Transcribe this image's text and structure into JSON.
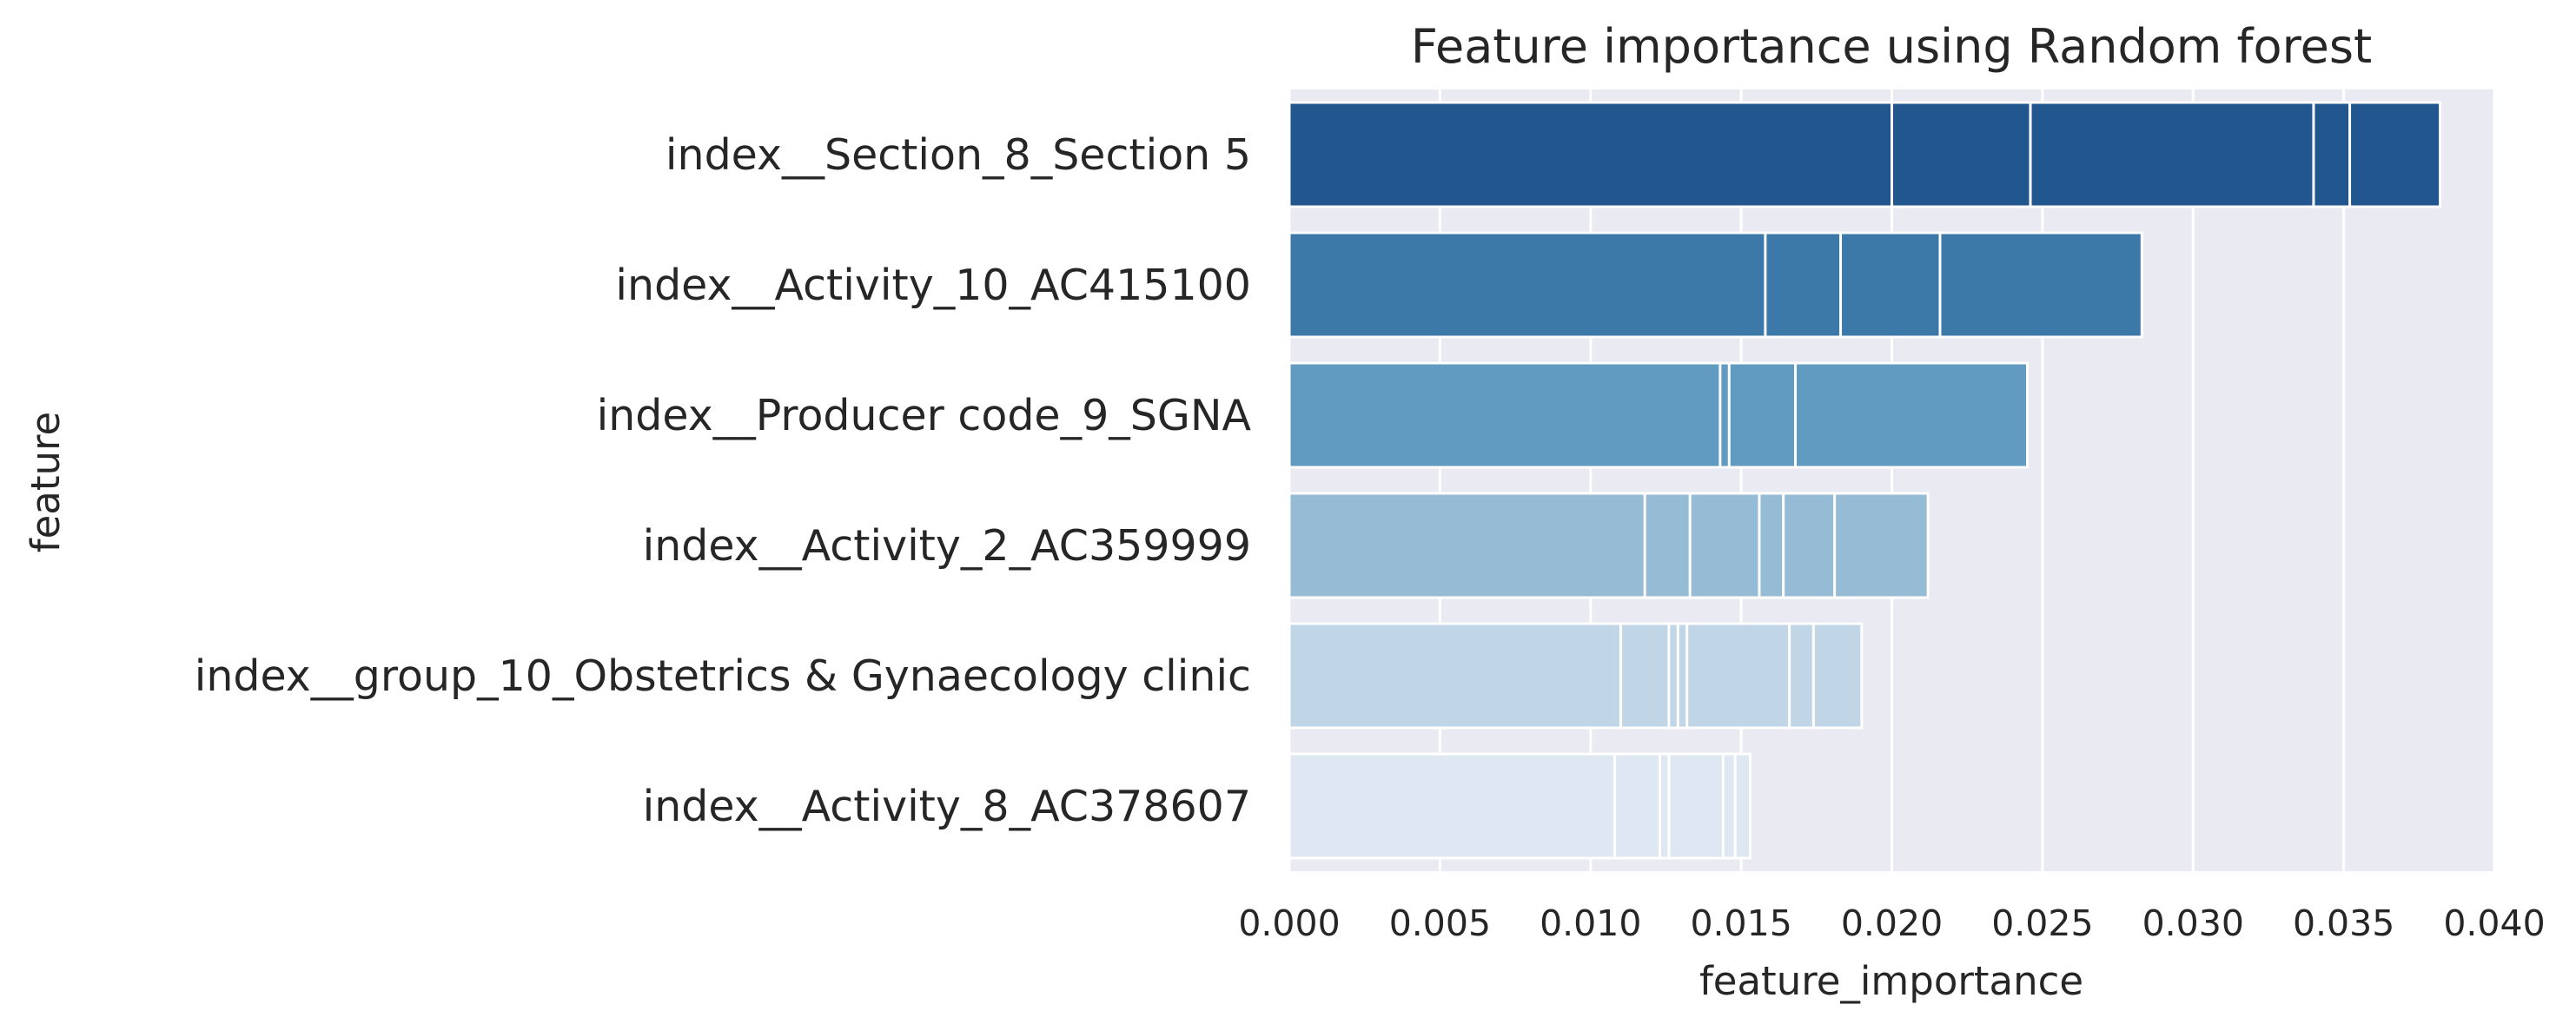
{
  "chart_data": {
    "type": "bar",
    "orientation": "horizontal",
    "title": "Feature importance using Random forest",
    "xlabel": "feature_importance",
    "ylabel": "feature",
    "xlim": [
      0,
      0.04
    ],
    "x_ticks": [
      "0.000",
      "0.005",
      "0.010",
      "0.015",
      "0.020",
      "0.025",
      "0.030",
      "0.035",
      "0.040"
    ],
    "grid": true,
    "categories": [
      "index__Section_8_Section 5",
      "index__Activity_10_AC415100",
      "index__Producer code_9_SGNA",
      "index__Activity_2_AC359999",
      "index__group_10_Obstetrics & Gynaecology clinic",
      "index__Activity_8_AC378607"
    ],
    "colors": [
      "#21578e",
      "#3c78a8",
      "#629bc1",
      "#95bcd4",
      "#c0d6e6",
      "#dfe8f2"
    ],
    "values": [
      0.0382,
      0.0283,
      0.0245,
      0.0212,
      0.019,
      0.0153
    ],
    "stacked_segment_boundaries": [
      [
        0.02,
        0.0246,
        0.034,
        0.0352
      ],
      [
        0.0158,
        0.0183,
        0.0216
      ],
      [
        0.0143,
        0.0146,
        0.0168
      ],
      [
        0.0118,
        0.0133,
        0.0156,
        0.0164,
        0.0181
      ],
      [
        0.011,
        0.0126,
        0.0129,
        0.0132,
        0.0166,
        0.0174
      ],
      [
        0.0108,
        0.0123,
        0.0126,
        0.0144,
        0.0148
      ]
    ]
  }
}
